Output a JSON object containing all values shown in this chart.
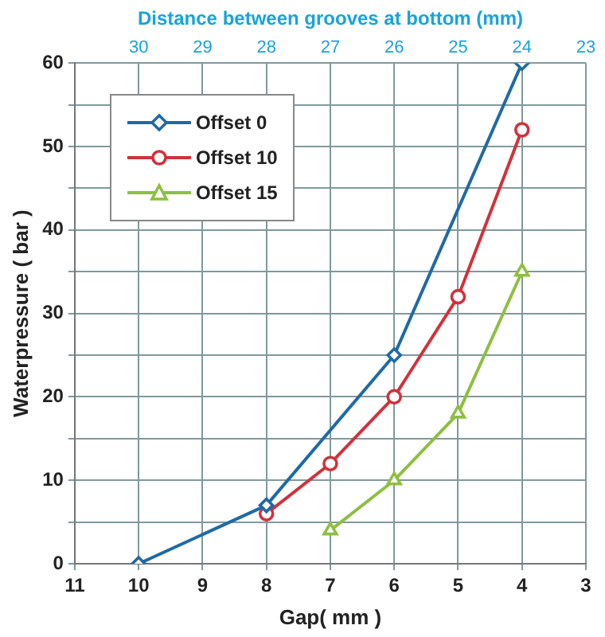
{
  "chart_data": {
    "type": "line",
    "xlabel": "Gap( mm )",
    "ylabel": "Waterpressure ( bar )",
    "x2label": "Distance between grooves at bottom (mm)",
    "xlim": [
      11,
      3
    ],
    "xticks": [
      11,
      10,
      9,
      8,
      7,
      6,
      5,
      4,
      3
    ],
    "x2lim": [
      31,
      23
    ],
    "x2ticks": [
      30,
      29,
      28,
      27,
      26,
      25,
      24,
      23
    ],
    "ylim": [
      0,
      60
    ],
    "yticks": [
      0,
      {
        "value": 5,
        "label": null
      },
      10,
      {
        "value": 15,
        "label": null
      },
      20,
      {
        "value": 25,
        "label": null
      },
      30,
      {
        "value": 35,
        "label": null
      },
      40,
      {
        "value": 45,
        "label": null
      },
      50,
      {
        "value": 55,
        "label": null
      },
      60
    ],
    "grid": true,
    "legend": "top left",
    "line_style": "solid",
    "series": [
      {
        "name": "Offset 0",
        "color": "#1f6aa5",
        "marker": "diamond",
        "x": [
          10,
          8,
          6,
          4
        ],
        "values": [
          0,
          7,
          25,
          60
        ]
      },
      {
        "name": "Offset 10",
        "color": "#d0323c",
        "marker": "circle",
        "x": [
          8,
          7,
          6,
          5,
          4
        ],
        "values": [
          6,
          12,
          20,
          32,
          52
        ]
      },
      {
        "name": "Offset 15",
        "color": "#8dbf42",
        "marker": "triangle",
        "x": [
          7,
          6,
          5,
          4
        ],
        "values": [
          4,
          10,
          18,
          35
        ]
      }
    ]
  }
}
